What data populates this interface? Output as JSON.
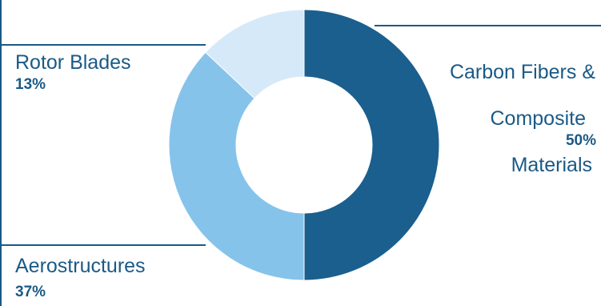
{
  "colors": {
    "dark_blue": "#1a5f8e",
    "mid_blue": "#86c3ea",
    "light_blue": "#d6e9f8",
    "text": "#1a5a86"
  },
  "chart_data": {
    "type": "pie",
    "donut": true,
    "title": "",
    "slices": [
      {
        "label": "Carbon Fibers & Composite Materials",
        "value": 50,
        "value_label": "50%",
        "color": "#1a5f8e"
      },
      {
        "label": "Aerostructures",
        "value": 37,
        "value_label": "37%",
        "color": "#86c3ea"
      },
      {
        "label": "Rotor Blades",
        "value": 13,
        "value_label": "13%",
        "color": "#d6e9f8"
      }
    ],
    "legend": "none"
  },
  "labels": {
    "carbon": {
      "line1": "Carbon Fibers &",
      "line2": "Composite",
      "line3": "Materials",
      "pct": "50%"
    },
    "aero": {
      "name": "Aerostructures",
      "pct": "37%"
    },
    "rotor": {
      "name": "Rotor Blades",
      "pct": "13%"
    }
  }
}
